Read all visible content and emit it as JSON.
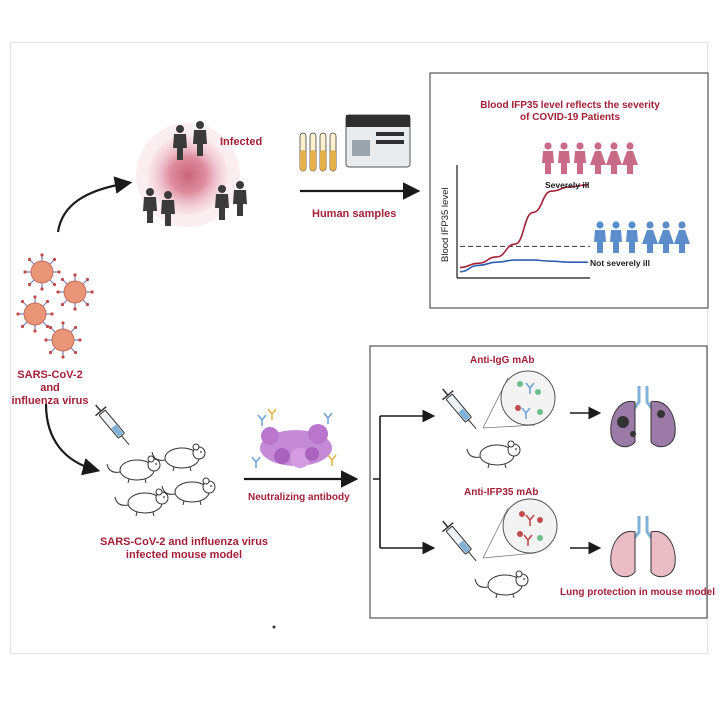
{
  "labels": {
    "virus": "SARS-CoV-2 and\ninfluenza virus",
    "infected": "Infected",
    "human_samples": "Human samples",
    "chart_title": "Blood IFP35 level reflects the severity\nof COVID-19  Patients",
    "severely_ill": "Severely ill",
    "not_severely_ill": "Not severely ill",
    "y_axis": "Blood IFP35 level",
    "mouse_model": "SARS-CoV-2 and influenza virus\ninfected mouse model",
    "neutralizing_antibody": "Neutralizing antibody",
    "anti_igg": "Anti-IgG mAb",
    "anti_ifp35": "Anti-IFP35 mAb",
    "lung_protection": "Lung protection in mouse model"
  },
  "colors": {
    "accent": "#a31f38",
    "severe": "#c96a86",
    "mild": "#5b8ccc",
    "diseased_lung": "#9b7aa8",
    "healthy_lung": "#e9bcc6"
  },
  "chart_data": {
    "type": "line",
    "title": "Blood IFP35 level reflects the severity\nof COVID-19  Patients",
    "ylabel": "Blood IFP35 level",
    "xlabel": "",
    "series": [
      {
        "name": "Severely ill",
        "values": [
          0.08,
          0.12,
          0.18,
          0.3,
          0.6,
          0.8,
          0.84,
          0.86
        ]
      },
      {
        "name": "Not severely ill",
        "values": [
          0.04,
          0.1,
          0.13,
          0.15,
          0.15,
          0.14,
          0.13,
          0.13
        ]
      }
    ],
    "threshold": 0.28,
    "ylim": [
      0,
      1
    ],
    "grid": false
  }
}
